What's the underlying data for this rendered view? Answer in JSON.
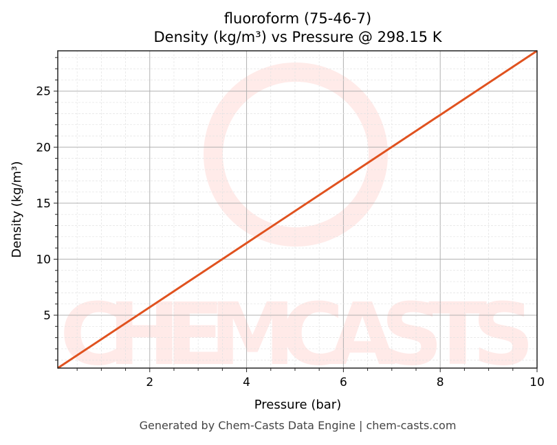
{
  "chart_data": {
    "type": "line",
    "title": "fluoroform (75-46-7)",
    "subtitle": "Density (kg/m³) vs Pressure @ 298.15 K",
    "xlabel": "Pressure (bar)",
    "ylabel": "Density (kg/m³)",
    "xlim": [
      0.1,
      10
    ],
    "ylim": [
      0.28,
      28.6
    ],
    "xticks": [
      2,
      4,
      6,
      8,
      10
    ],
    "yticks": [
      5,
      10,
      15,
      20,
      25
    ],
    "grid": true,
    "series": [
      {
        "x": [
          0.1,
          10
        ],
        "y": [
          0.28,
          28.6
        ],
        "color": "#e0521f"
      }
    ],
    "watermark": "CHEMCASTS",
    "footer": "Generated by Chem-Casts Data Engine | chem-casts.com"
  }
}
